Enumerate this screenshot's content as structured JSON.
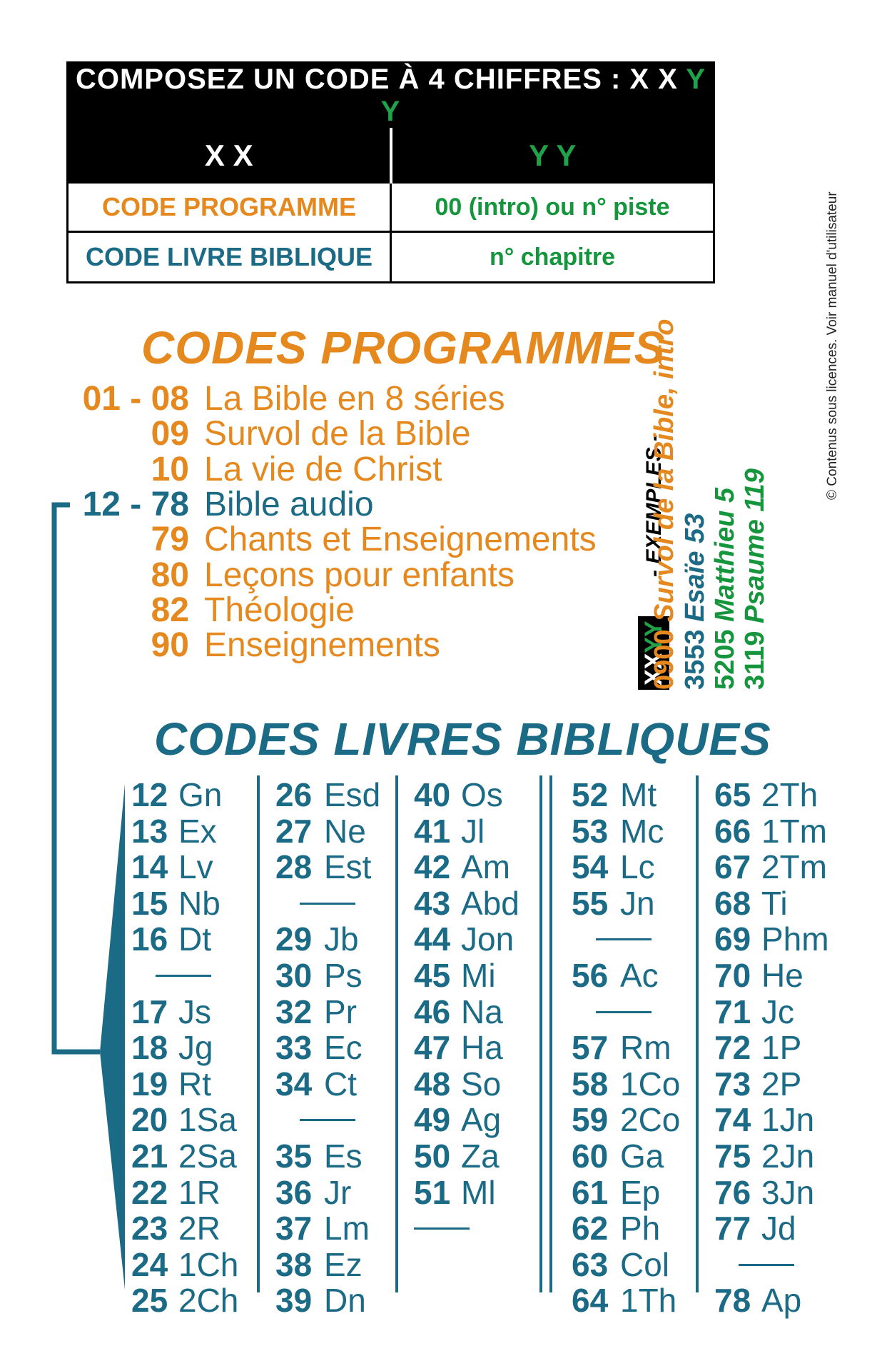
{
  "header": {
    "title_prefix": "COMPOSEZ UN CODE À 4 CHIFFRES : X X",
    "title_suffix": "Y Y",
    "col_left": "X X",
    "col_right": "Y Y",
    "row1_left": "CODE PROGRAMME",
    "row1_right": "00 (intro) ou n° piste",
    "row2_left": "CODE LIVRE BIBLIQUE",
    "row2_right": "n° chapitre"
  },
  "programmes": {
    "title": "CODES PROGRAMMES",
    "items": [
      {
        "code": "01 - 08",
        "label": "La Bible en 8 séries",
        "color": "#e5891f"
      },
      {
        "code": "09",
        "label": "Survol de la Bible",
        "color": "#e5891f"
      },
      {
        "code": "10",
        "label": "La vie de Christ",
        "color": "#e5891f"
      },
      {
        "code": "12 - 78",
        "label": "Bible audio",
        "color": "#1b6a86"
      },
      {
        "code": "79",
        "label": "Chants et Enseignements",
        "color": "#e5891f"
      },
      {
        "code": "80",
        "label": "Leçons pour enfants",
        "color": "#e5891f"
      },
      {
        "code": "82",
        "label": "Théologie",
        "color": "#e5891f"
      },
      {
        "code": "90",
        "label": "Enseignements",
        "color": "#e5891f"
      }
    ]
  },
  "examples": {
    "heading": "- EXEMPLES -",
    "badge_xx": "XX",
    "badge_yy": "YY",
    "items": [
      {
        "code": "0900",
        "label": "Survol de la Bible, intro",
        "color": "#e5891f"
      },
      {
        "code": "3553",
        "label": "Esaïe 53",
        "color": "#1b6a86"
      },
      {
        "code": "5205",
        "label": "Matthieu 5",
        "color": "#15963d"
      },
      {
        "code": "3119",
        "label": "Psaume 119",
        "color": "#15963d"
      }
    ]
  },
  "books": {
    "title": "CODES LIVRES BIBLIQUES",
    "columns": [
      [
        {
          "num": "12",
          "abbr": "Gn"
        },
        {
          "num": "13",
          "abbr": "Ex"
        },
        {
          "num": "14",
          "abbr": "Lv"
        },
        {
          "num": "15",
          "abbr": "Nb"
        },
        {
          "num": "16",
          "abbr": "Dt"
        },
        {
          "sep": true
        },
        {
          "num": "17",
          "abbr": "Js"
        },
        {
          "num": "18",
          "abbr": "Jg"
        },
        {
          "num": "19",
          "abbr": "Rt"
        },
        {
          "num": "20",
          "abbr": "1Sa"
        },
        {
          "num": "21",
          "abbr": "2Sa"
        },
        {
          "num": "22",
          "abbr": "1R"
        },
        {
          "num": "23",
          "abbr": "2R"
        },
        {
          "num": "24",
          "abbr": "1Ch"
        },
        {
          "num": "25",
          "abbr": "2Ch"
        }
      ],
      [
        {
          "num": "26",
          "abbr": "Esd"
        },
        {
          "num": "27",
          "abbr": "Ne"
        },
        {
          "num": "28",
          "abbr": "Est"
        },
        {
          "sep": true
        },
        {
          "num": "29",
          "abbr": "Jb"
        },
        {
          "num": "30",
          "abbr": "Ps"
        },
        {
          "num": "32",
          "abbr": "Pr"
        },
        {
          "num": "33",
          "abbr": "Ec"
        },
        {
          "num": "34",
          "abbr": "Ct"
        },
        {
          "sep": true
        },
        {
          "num": "35",
          "abbr": "Es"
        },
        {
          "num": "36",
          "abbr": "Jr"
        },
        {
          "num": "37",
          "abbr": "Lm"
        },
        {
          "num": "38",
          "abbr": "Ez"
        },
        {
          "num": "39",
          "abbr": "Dn"
        }
      ],
      [
        {
          "num": "40",
          "abbr": "Os"
        },
        {
          "num": "41",
          "abbr": "Jl"
        },
        {
          "num": "42",
          "abbr": "Am"
        },
        {
          "num": "43",
          "abbr": "Abd"
        },
        {
          "num": "44",
          "abbr": "Jon"
        },
        {
          "num": "45",
          "abbr": "Mi"
        },
        {
          "num": "46",
          "abbr": "Na"
        },
        {
          "num": "47",
          "abbr": "Ha"
        },
        {
          "num": "48",
          "abbr": "So"
        },
        {
          "num": "49",
          "abbr": "Ag"
        },
        {
          "num": "50",
          "abbr": "Za"
        },
        {
          "num": "51",
          "abbr": "Ml"
        },
        {
          "sep": true
        }
      ],
      [
        {
          "num": "52",
          "abbr": "Mt"
        },
        {
          "num": "53",
          "abbr": "Mc"
        },
        {
          "num": "54",
          "abbr": "Lc"
        },
        {
          "num": "55",
          "abbr": "Jn"
        },
        {
          "sep": true
        },
        {
          "num": "56",
          "abbr": "Ac"
        },
        {
          "sep": true
        },
        {
          "num": "57",
          "abbr": "Rm"
        },
        {
          "num": "58",
          "abbr": "1Co"
        },
        {
          "num": "59",
          "abbr": "2Co"
        },
        {
          "num": "60",
          "abbr": "Ga"
        },
        {
          "num": "61",
          "abbr": "Ep"
        },
        {
          "num": "62",
          "abbr": "Ph"
        },
        {
          "num": "63",
          "abbr": "Col"
        },
        {
          "num": "64",
          "abbr": "1Th"
        }
      ],
      [
        {
          "num": "65",
          "abbr": "2Th"
        },
        {
          "num": "66",
          "abbr": "1Tm"
        },
        {
          "num": "67",
          "abbr": "2Tm"
        },
        {
          "num": "68",
          "abbr": "Ti"
        },
        {
          "num": "69",
          "abbr": "Phm"
        },
        {
          "num": "70",
          "abbr": "He"
        },
        {
          "num": "71",
          "abbr": "Jc"
        },
        {
          "num": "72",
          "abbr": "1P"
        },
        {
          "num": "73",
          "abbr": "2P"
        },
        {
          "num": "74",
          "abbr": "1Jn"
        },
        {
          "num": "75",
          "abbr": "2Jn"
        },
        {
          "num": "76",
          "abbr": "3Jn"
        },
        {
          "num": "77",
          "abbr": "Jd"
        },
        {
          "sep": true
        },
        {
          "num": "78",
          "abbr": "Ap"
        }
      ]
    ]
  },
  "copyright": "© Contenus sous licences. Voir manuel d'utilisateur",
  "colors": {
    "orange": "#e5891f",
    "teal": "#1b6a86",
    "green": "#15963d",
    "black": "#000000"
  }
}
